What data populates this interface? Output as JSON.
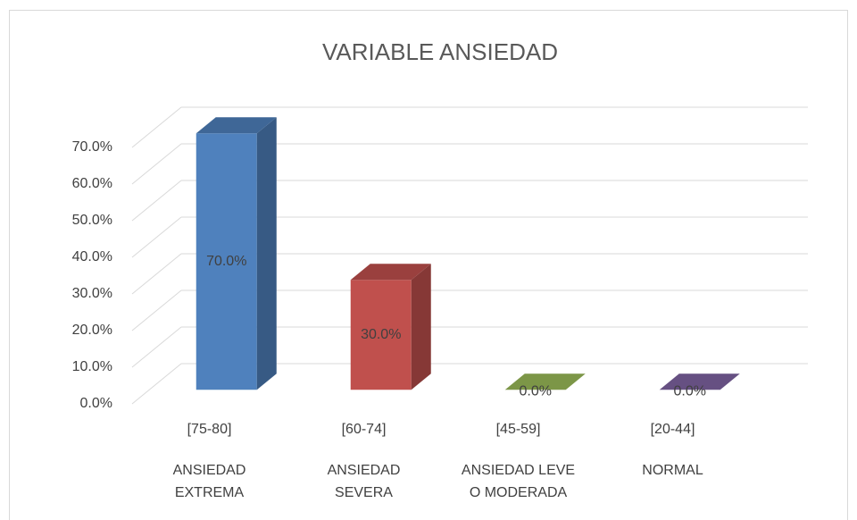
{
  "chart_data": {
    "type": "bar3d",
    "title": "VARIABLE  ANSIEDAD",
    "categories": [
      "[75-80]",
      "[60-74]",
      "[45-59]",
      "[20-44]"
    ],
    "category_names": [
      [
        "ANSIEDAD",
        "EXTREMA"
      ],
      [
        "ANSIEDAD",
        "SEVERA"
      ],
      [
        "ANSIEDAD LEVE",
        "O MODERADA"
      ],
      [
        "NORMAL"
      ]
    ],
    "values": [
      70,
      30,
      0,
      0
    ],
    "value_labels": [
      "70.0%",
      "30.0%",
      "0.0%",
      "0.0%"
    ],
    "colors": [
      "#4f81bd",
      "#c0504d",
      "#9bbb59",
      "#8064a2"
    ],
    "ylim": [
      0,
      70
    ],
    "yticks": [
      {
        "value": 0,
        "label": "0.0%"
      },
      {
        "value": 10,
        "label": "10.0%"
      },
      {
        "value": 20,
        "label": "20.0%"
      },
      {
        "value": 30,
        "label": "30.0%"
      },
      {
        "value": 40,
        "label": "40.0%"
      },
      {
        "value": 50,
        "label": "50.0%"
      },
      {
        "value": 60,
        "label": "60.0%"
      },
      {
        "value": 70,
        "label": "70.0%"
      }
    ],
    "grid": true
  }
}
